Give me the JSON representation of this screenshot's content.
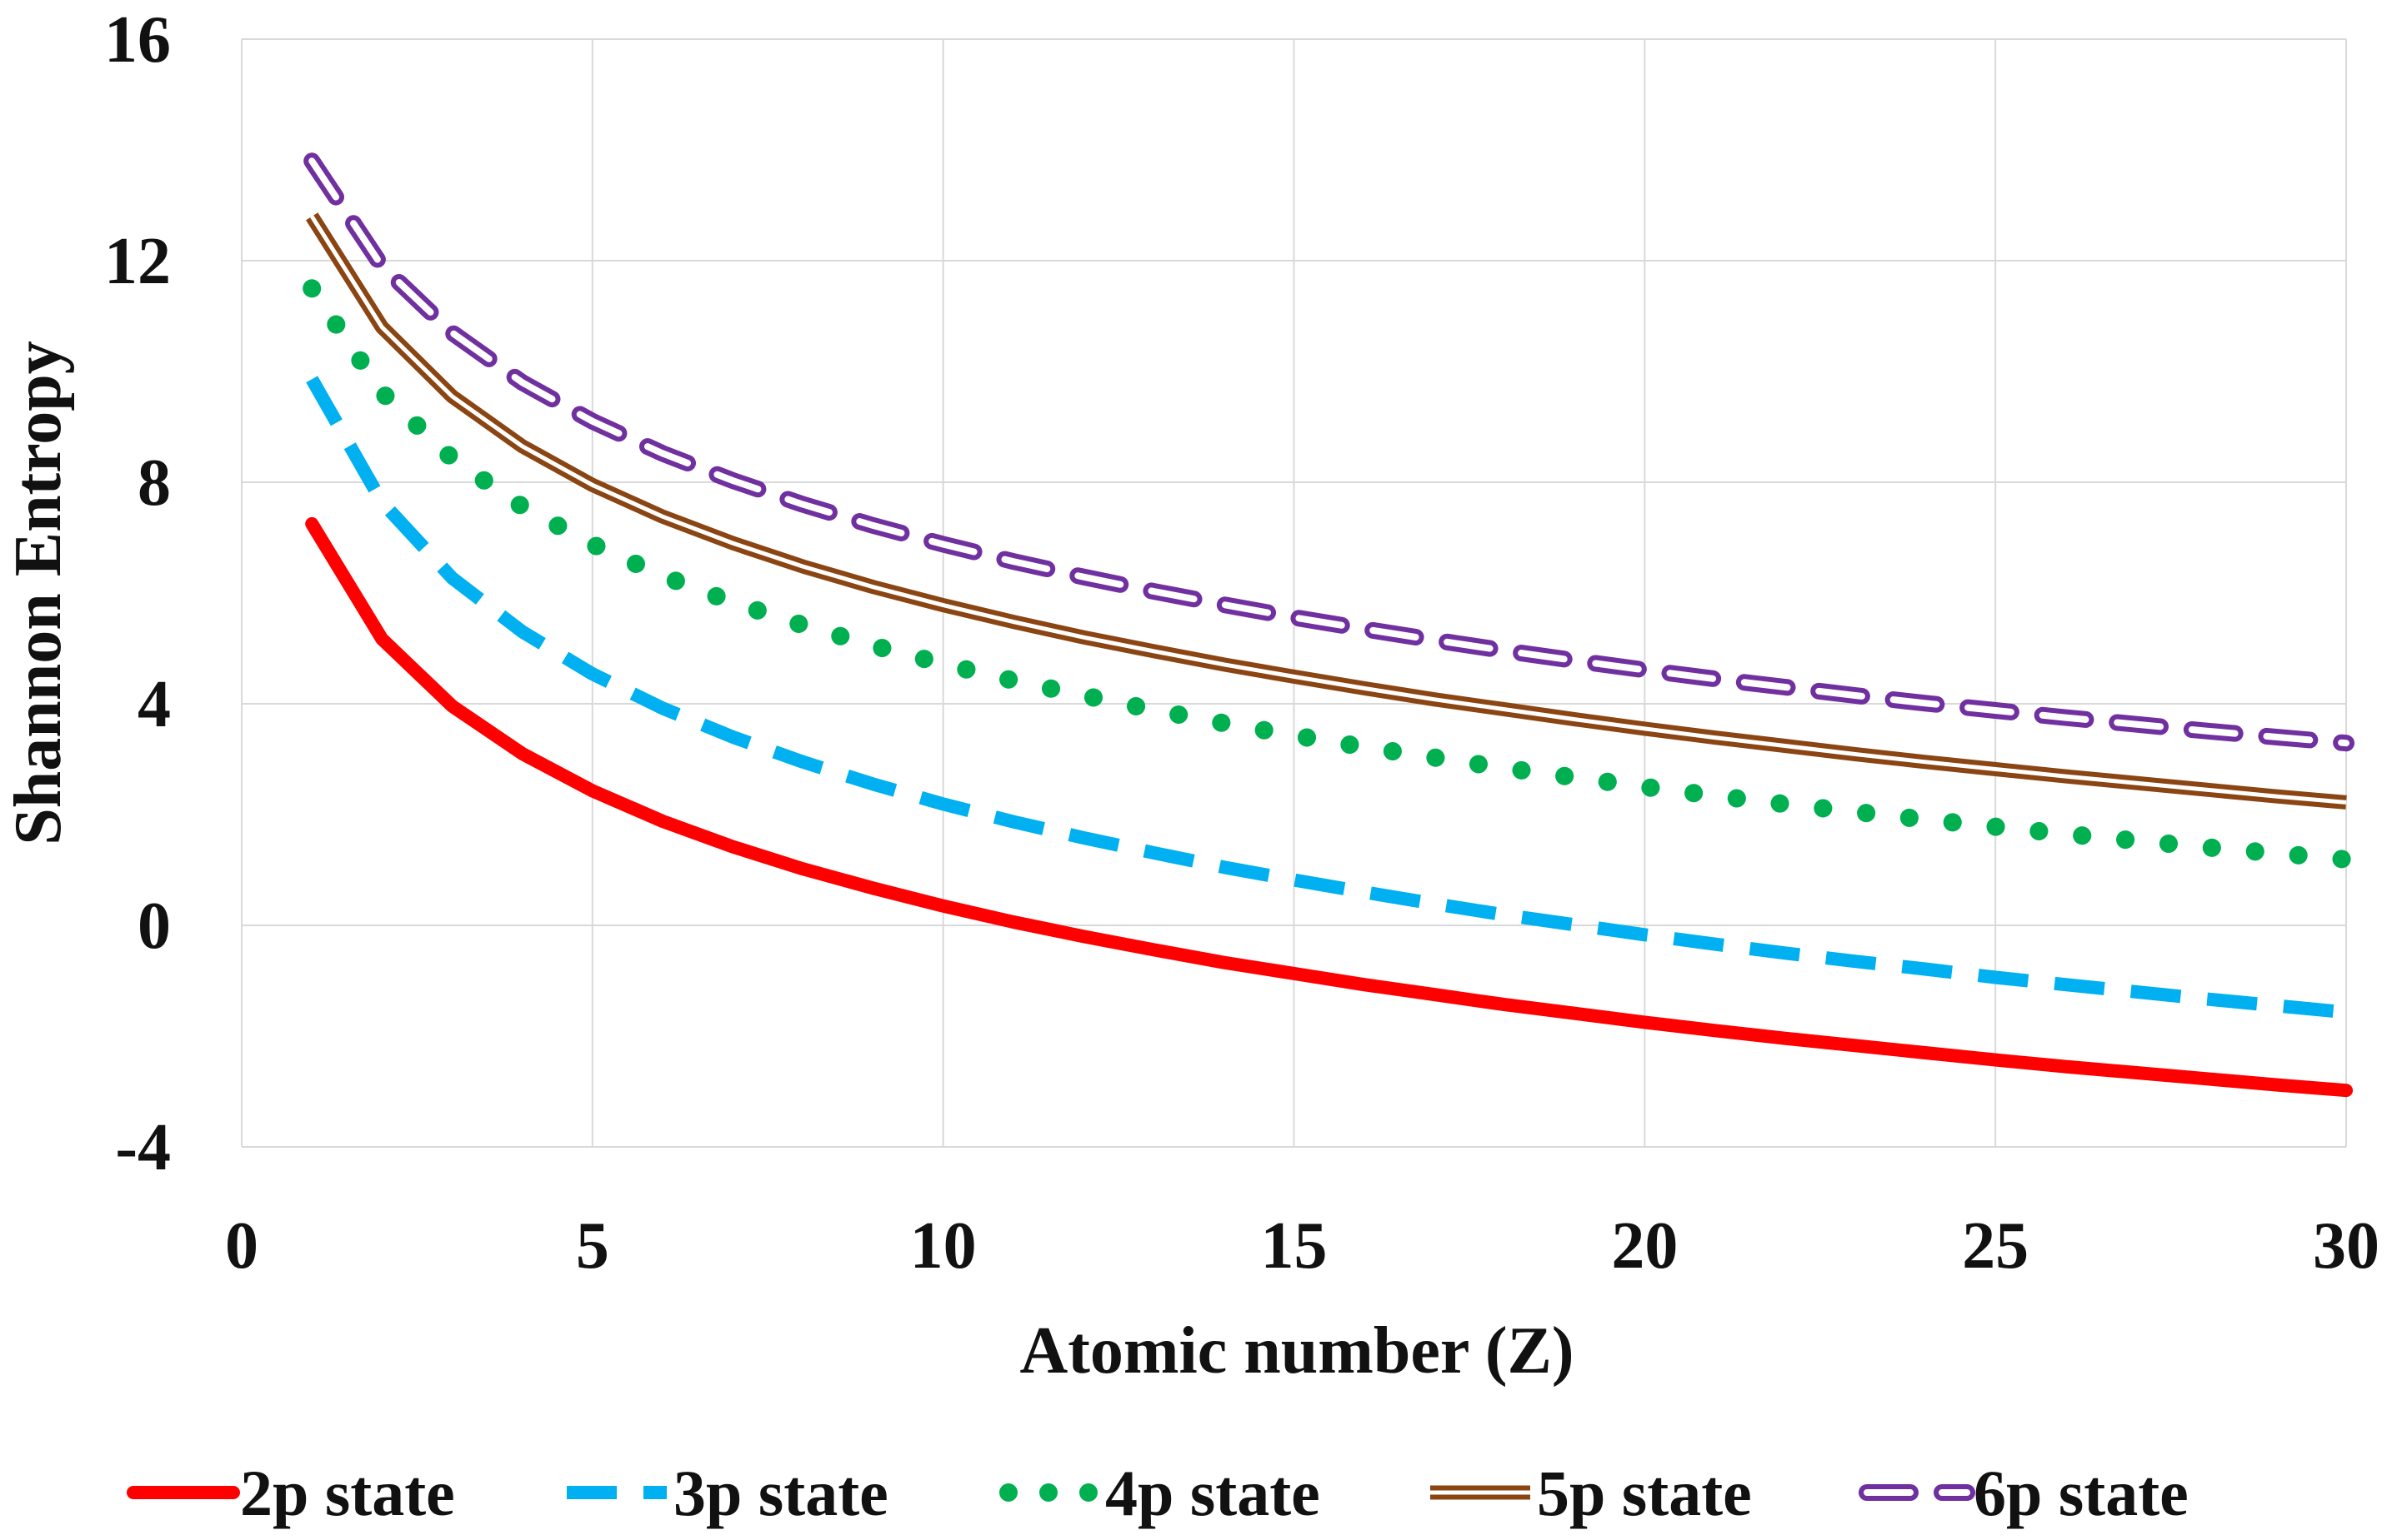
{
  "chart_data": {
    "type": "line",
    "title": "",
    "xlabel": "Atomic number (Z)",
    "ylabel": "Shannon Entropy",
    "xlim": [
      0,
      30
    ],
    "ylim": [
      -4,
      16
    ],
    "xticks": [
      0,
      5,
      10,
      15,
      20,
      25,
      30
    ],
    "yticks": [
      -4,
      0,
      4,
      8,
      12,
      16
    ],
    "xtick_labels": [
      "0",
      "5",
      "10",
      "15",
      "20",
      "25",
      "30"
    ],
    "ytick_labels": [
      "-4",
      "0",
      "4",
      "8",
      "12",
      "16"
    ],
    "grid": true,
    "legend_position": "bottom",
    "x": [
      1,
      2,
      3,
      4,
      5,
      6,
      7,
      8,
      9,
      10,
      11,
      12,
      13,
      14,
      15,
      16,
      17,
      18,
      19,
      20,
      21,
      22,
      23,
      24,
      25,
      26,
      27,
      28,
      29,
      30
    ],
    "series": [
      {
        "name": "2p state",
        "color": "#ff0000",
        "style": "solid",
        "values": [
          7.25,
          5.17,
          3.96,
          3.1,
          2.43,
          1.88,
          1.42,
          1.02,
          0.67,
          0.35,
          0.06,
          -0.2,
          -0.44,
          -0.67,
          -0.87,
          -1.07,
          -1.25,
          -1.43,
          -1.59,
          -1.75,
          -1.9,
          -2.04,
          -2.17,
          -2.3,
          -2.43,
          -2.55,
          -2.66,
          -2.77,
          -2.88,
          -2.98
        ]
      },
      {
        "name": "3p state",
        "color": "#00b0f0",
        "style": "dashed",
        "values": [
          9.86,
          7.64,
          6.27,
          5.3,
          4.54,
          3.92,
          3.4,
          2.95,
          2.55,
          2.19,
          1.87,
          1.58,
          1.31,
          1.05,
          0.82,
          0.6,
          0.39,
          0.19,
          0.01,
          -0.17,
          -0.34,
          -0.5,
          -0.65,
          -0.79,
          -0.94,
          -1.07,
          -1.2,
          -1.33,
          -1.45,
          -1.57
        ]
      },
      {
        "name": "4p state",
        "color": "#00b050",
        "style": "dotted",
        "values": [
          11.5,
          9.62,
          8.43,
          7.56,
          6.88,
          6.31,
          5.83,
          5.42,
          5.05,
          4.72,
          4.42,
          4.15,
          3.89,
          3.65,
          3.43,
          3.22,
          3.03,
          2.84,
          2.67,
          2.5,
          2.34,
          2.19,
          2.05,
          1.91,
          1.78,
          1.65,
          1.53,
          1.41,
          1.3,
          1.19
        ]
      },
      {
        "name": "5p state",
        "color": "#8b4513",
        "style": "double",
        "values": [
          12.8,
          10.8,
          9.55,
          8.65,
          7.95,
          7.38,
          6.9,
          6.48,
          6.11,
          5.78,
          5.48,
          5.2,
          4.95,
          4.71,
          4.49,
          4.28,
          4.08,
          3.9,
          3.72,
          3.55,
          3.39,
          3.24,
          3.09,
          2.95,
          2.82,
          2.69,
          2.57,
          2.45,
          2.33,
          2.22
        ]
      },
      {
        "name": "6p state",
        "color": "#7030a0",
        "style": "dashed-double",
        "values": [
          13.8,
          11.9,
          10.7,
          9.8,
          9.1,
          8.52,
          8.03,
          7.6,
          7.22,
          6.88,
          6.57,
          6.29,
          6.03,
          5.79,
          5.56,
          5.35,
          5.15,
          4.96,
          4.78,
          4.61,
          4.45,
          4.3,
          4.15,
          4.01,
          3.88,
          3.75,
          3.63,
          3.51,
          3.4,
          3.29
        ]
      }
    ]
  }
}
